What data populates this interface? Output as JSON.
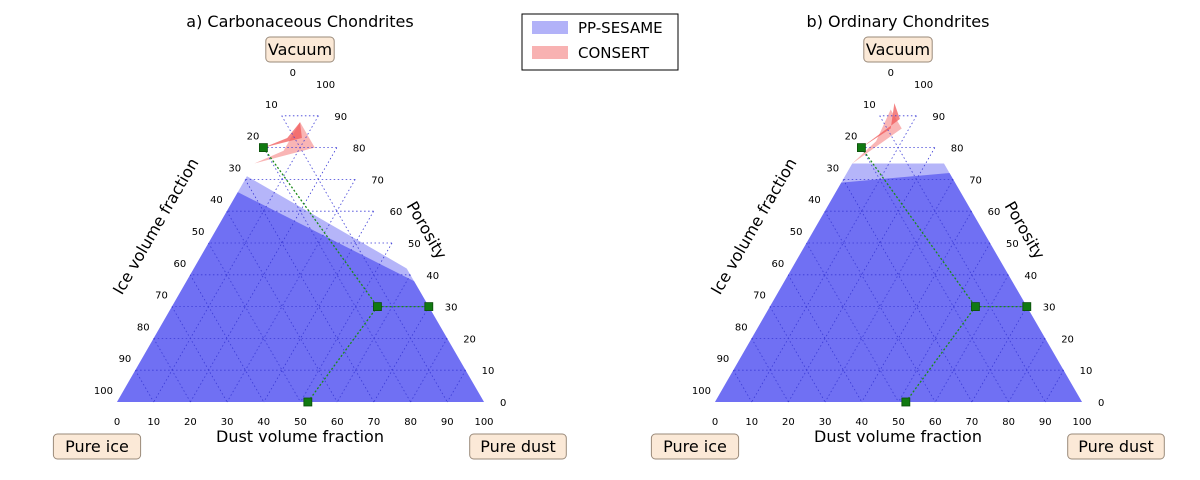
{
  "legend": {
    "placement": "top-center",
    "items": [
      {
        "label": "PP-SESAME",
        "color": "#8c8cf5"
      },
      {
        "label": "CONSERT",
        "color": "#f48c8c"
      }
    ]
  },
  "corner_labels": {
    "top": "Vacuum",
    "left": "Pure ice",
    "right": "Pure dust"
  },
  "axis_labels": {
    "left": "Ice volume fraction",
    "right": "Porosity",
    "bottom": "Dust volume fraction"
  },
  "tick_values": [
    0,
    10,
    20,
    30,
    40,
    50,
    60,
    70,
    80,
    90,
    100
  ],
  "colors": {
    "sesame_fill": "#5a5af0",
    "sesame_light": "#a8a8f8",
    "consert_fill": "#f05a5a",
    "consert_light": "#f8a8a8",
    "grid": "#3b3bd6",
    "solution": "#1a8a1a",
    "label_box_fill": "#fbe9d7",
    "label_box_edge": "#9a8a7a"
  },
  "chart_data": [
    {
      "type": "ternary",
      "title": "a) Carbonaceous Chondrites",
      "components": [
        "Porosity",
        "Dust volume fraction",
        "Ice volume fraction"
      ],
      "units": "%",
      "regions": [
        {
          "name": "PP-SESAME",
          "shade": "light",
          "porosity_range": [
            0,
            71
          ],
          "boundary": [
            [
              71,
              0,
              29
            ],
            [
              42,
              58,
              0
            ]
          ]
        },
        {
          "name": "PP-SESAME",
          "shade": "dark",
          "porosity_range": [
            0,
            66
          ],
          "boundary": [
            [
              66,
              0,
              34
            ],
            [
              38,
              62,
              0
            ]
          ]
        },
        {
          "name": "CONSERT",
          "shade": "light",
          "points": [
            [
              75,
              0,
              25
            ],
            [
              79,
              6,
              15
            ],
            [
              88,
              6,
              6
            ],
            [
              80,
              14,
              6
            ]
          ]
        },
        {
          "name": "CONSERT",
          "shade": "dark",
          "points": [
            [
              80,
              0,
              20
            ],
            [
              83,
              5,
              12
            ],
            [
              88,
              6,
              6
            ],
            [
              83,
              9,
              8
            ]
          ]
        }
      ],
      "solution_points": [
        {
          "porosity": 80,
          "dust": 0,
          "ice": 20
        },
        {
          "porosity": 30,
          "dust": 56,
          "ice": 14
        },
        {
          "porosity": 30,
          "dust": 70,
          "ice": 0
        },
        {
          "porosity": 0,
          "dust": 52,
          "ice": 48
        }
      ]
    },
    {
      "type": "ternary",
      "title": "b) Ordinary Chondrites",
      "components": [
        "Porosity",
        "Dust volume fraction",
        "Ice volume fraction"
      ],
      "units": "%",
      "regions": [
        {
          "name": "PP-SESAME",
          "shade": "light",
          "porosity_range": [
            0,
            75
          ],
          "boundary": [
            [
              75,
              0,
              25
            ],
            [
              75,
              25,
              0
            ]
          ]
        },
        {
          "name": "PP-SESAME",
          "shade": "dark",
          "porosity_range": [
            0,
            72
          ],
          "boundary": [
            [
              69,
              0,
              31
            ],
            [
              72,
              28,
              0
            ]
          ]
        },
        {
          "name": "CONSERT",
          "shade": "light",
          "points": [
            [
              75,
              0,
              25
            ],
            [
              82,
              3,
              15
            ],
            [
              92,
              2,
              6
            ],
            [
              86,
              8,
              6
            ]
          ]
        },
        {
          "name": "CONSERT",
          "shade": "dark",
          "points": [
            [
              80,
              0,
              20
            ],
            [
              86,
              5,
              9
            ],
            [
              94,
              2,
              4
            ],
            [
              89,
              6,
              5
            ]
          ]
        }
      ],
      "solution_points": [
        {
          "porosity": 80,
          "dust": 0,
          "ice": 20
        },
        {
          "porosity": 30,
          "dust": 56,
          "ice": 14
        },
        {
          "porosity": 30,
          "dust": 70,
          "ice": 0
        },
        {
          "porosity": 0,
          "dust": 52,
          "ice": 48
        }
      ]
    }
  ]
}
